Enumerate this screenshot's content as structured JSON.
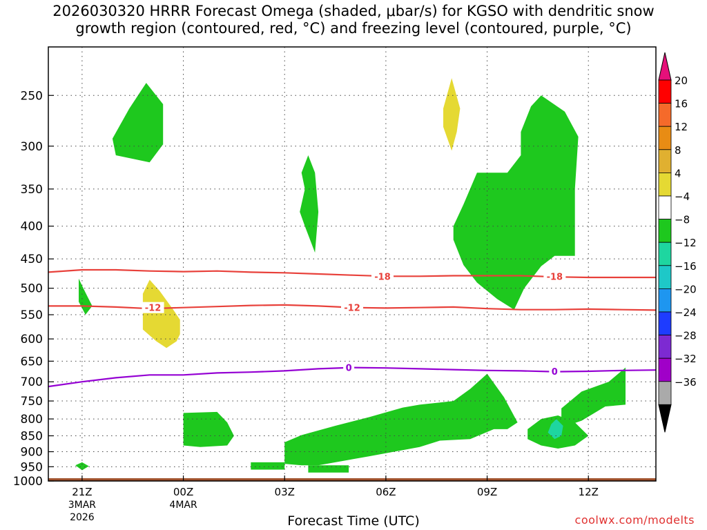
{
  "title_line1": "2026030320 HRRR Forecast Omega (shaded, μbar/s) for KGSO with dendritic snow",
  "title_line2": "growth region (contoured, red, °C) and freezing level (contoured, purple, °C)",
  "credit": "coolwx.com/modelts",
  "chart_data": {
    "type": "heatmap",
    "title": "2026030320 HRRR Forecast Omega (shaded, μbar/s) for KGSO with dendritic snow growth region (contoured, red, °C) and freezing level (contoured, purple, °C)",
    "xlabel": "Forecast Time (UTC)",
    "ylabel": "",
    "x_range_hours_from_21Z": [
      -1,
      17
    ],
    "y_axis": {
      "scale": "log",
      "inverted": true,
      "range_hPa": [
        1000,
        210
      ]
    },
    "y_ticks": [
      250,
      300,
      350,
      400,
      450,
      500,
      550,
      600,
      650,
      700,
      750,
      800,
      850,
      900,
      950,
      1000
    ],
    "x_ticks": [
      {
        "hour": 0,
        "label": "21Z",
        "sub1": "3MAR",
        "sub2": "2026"
      },
      {
        "hour": 3,
        "label": "00Z",
        "sub1": "4MAR",
        "sub2": ""
      },
      {
        "hour": 6,
        "label": "03Z",
        "sub1": "",
        "sub2": ""
      },
      {
        "hour": 9,
        "label": "06Z",
        "sub1": "",
        "sub2": ""
      },
      {
        "hour": 12,
        "label": "09Z",
        "sub1": "",
        "sub2": ""
      },
      {
        "hour": 15,
        "label": "12Z",
        "sub1": "",
        "sub2": ""
      }
    ],
    "grid": true,
    "colorbar": {
      "levels": [
        "20",
        "16",
        "12",
        "8",
        "4",
        "−4",
        "−8",
        "−12",
        "−16",
        "−20",
        "−24",
        "−28",
        "−32",
        "−36"
      ],
      "colors": [
        "#ff0000",
        "#f56a2a",
        "#e88c14",
        "#e0b030",
        "#e5d933",
        "#ffffff",
        "#1ec81e",
        "#1ed6a0",
        "#1ec8c8",
        "#1e96f0",
        "#1e3cff",
        "#7d2ad2",
        "#a000c8",
        "#aaaaaa"
      ],
      "top_arrow_color": "#e6107a",
      "bottom_arrow_color": "#000000"
    },
    "regions": [
      {
        "value": -4,
        "color": "#1ec81e",
        "points": [
          [
            0.9,
            292
          ],
          [
            1.4,
            262
          ],
          [
            1.9,
            239
          ],
          [
            2.4,
            258
          ],
          [
            2.4,
            298
          ],
          [
            2.0,
            318
          ],
          [
            1.0,
            310
          ]
        ]
      },
      {
        "value": -4,
        "color": "#1ec81e",
        "points": [
          [
            6.5,
            330
          ],
          [
            6.7,
            310
          ],
          [
            6.9,
            330
          ],
          [
            7.0,
            380
          ],
          [
            6.9,
            440
          ],
          [
            6.6,
            400
          ],
          [
            6.45,
            380
          ],
          [
            6.6,
            350
          ]
        ]
      },
      {
        "value": -4,
        "color": "#1ec81e",
        "points": [
          [
            13.0,
            285
          ],
          [
            13.3,
            260
          ],
          [
            13.6,
            250
          ],
          [
            14.3,
            265
          ],
          [
            14.7,
            290
          ],
          [
            14.6,
            350
          ],
          [
            14.6,
            445
          ],
          [
            14.0,
            445
          ],
          [
            13.6,
            462
          ],
          [
            13.1,
            500
          ],
          [
            12.8,
            540
          ],
          [
            12.3,
            520
          ],
          [
            11.7,
            490
          ],
          [
            11.3,
            460
          ],
          [
            11.0,
            420
          ],
          [
            11.0,
            400
          ],
          [
            11.3,
            370
          ],
          [
            11.7,
            330
          ],
          [
            12.6,
            330
          ],
          [
            13.0,
            310
          ]
        ]
      },
      {
        "value": -4,
        "color": "#1ec81e",
        "points": [
          [
            -0.1,
            483
          ],
          [
            0.1,
            508
          ],
          [
            0.3,
            533
          ],
          [
            0.1,
            550
          ],
          [
            -0.1,
            525
          ]
        ]
      },
      {
        "value": -4,
        "color": "#1ec81e",
        "points": [
          [
            3.0,
            783
          ],
          [
            4.0,
            780
          ],
          [
            4.3,
            810
          ],
          [
            4.5,
            850
          ],
          [
            4.3,
            880
          ],
          [
            3.5,
            885
          ],
          [
            3.0,
            880
          ]
        ]
      },
      {
        "value": -4,
        "color": "#1ec81e",
        "points": [
          [
            6.0,
            940
          ],
          [
            6.0,
            870
          ],
          [
            6.5,
            848
          ],
          [
            7.5,
            820
          ],
          [
            8.5,
            795
          ],
          [
            9.5,
            768
          ],
          [
            10.0,
            760
          ],
          [
            11.0,
            750
          ],
          [
            11.5,
            718
          ],
          [
            12.0,
            680
          ],
          [
            12.5,
            740
          ],
          [
            12.9,
            810
          ],
          [
            12.6,
            830
          ],
          [
            12.2,
            830
          ],
          [
            11.5,
            860
          ],
          [
            10.6,
            865
          ],
          [
            10.0,
            885
          ],
          [
            8.5,
            915
          ],
          [
            7.0,
            945
          ],
          [
            6.5,
            945
          ]
        ]
      },
      {
        "value": -4,
        "color": "#1ec81e",
        "points": [
          [
            5.0,
            935
          ],
          [
            6.0,
            935
          ],
          [
            6.0,
            960
          ],
          [
            5.0,
            960
          ]
        ]
      },
      {
        "value": -4,
        "color": "#1ec81e",
        "points": [
          [
            6.7,
            945
          ],
          [
            7.9,
            945
          ],
          [
            7.9,
            970
          ],
          [
            6.7,
            970
          ]
        ]
      },
      {
        "value": -4,
        "color": "#1ec81e",
        "points": [
          [
            14.2,
            810
          ],
          [
            14.2,
            770
          ],
          [
            14.8,
            725
          ],
          [
            15.6,
            700
          ],
          [
            16.1,
            665
          ],
          [
            16.1,
            760
          ],
          [
            15.5,
            765
          ],
          [
            14.8,
            805
          ],
          [
            14.5,
            815
          ]
        ]
      },
      {
        "value": -4,
        "color": "#1ec81e",
        "points": [
          [
            13.2,
            830
          ],
          [
            13.6,
            800
          ],
          [
            14.1,
            790
          ],
          [
            14.6,
            810
          ],
          [
            15.0,
            850
          ],
          [
            14.6,
            880
          ],
          [
            14.1,
            890
          ],
          [
            13.6,
            880
          ],
          [
            13.2,
            860
          ]
        ]
      },
      {
        "value": -8,
        "color": "#1ed6a0",
        "points": [
          [
            14.05,
            800
          ],
          [
            14.25,
            820
          ],
          [
            14.2,
            850
          ],
          [
            14.0,
            860
          ],
          [
            13.8,
            840
          ],
          [
            13.9,
            815
          ]
        ]
      },
      {
        "value": -4,
        "color": "#1ec81e",
        "points": [
          [
            -0.2,
            945
          ],
          [
            0.0,
            935
          ],
          [
            0.2,
            948
          ],
          [
            0.0,
            962
          ]
        ]
      },
      {
        "value": 4,
        "color": "#e5d933",
        "points": [
          [
            10.7,
            262
          ],
          [
            10.95,
            235
          ],
          [
            11.2,
            262
          ],
          [
            11.1,
            285
          ],
          [
            10.95,
            305
          ],
          [
            10.7,
            280
          ]
        ]
      },
      {
        "value": 4,
        "color": "#e5d933",
        "points": [
          [
            1.8,
            510
          ],
          [
            2.0,
            485
          ],
          [
            2.3,
            505
          ],
          [
            2.7,
            540
          ],
          [
            2.9,
            560
          ],
          [
            2.9,
            590
          ],
          [
            2.8,
            605
          ],
          [
            2.5,
            620
          ],
          [
            2.2,
            605
          ],
          [
            1.8,
            580
          ],
          [
            1.8,
            545
          ]
        ]
      }
    ],
    "contours": [
      {
        "level": "-18",
        "color": "#e8403a",
        "points": [
          [
            -1,
            472
          ],
          [
            0.0,
            468
          ],
          [
            1.0,
            468
          ],
          [
            2.0,
            470
          ],
          [
            3.0,
            471
          ],
          [
            4.0,
            470
          ],
          [
            5.0,
            472
          ],
          [
            6.0,
            473
          ],
          [
            7.0,
            475
          ],
          [
            8.0,
            477
          ],
          [
            9.0,
            479
          ],
          [
            10.0,
            479
          ],
          [
            11.0,
            478
          ],
          [
            12.0,
            478
          ],
          [
            13.0,
            478
          ],
          [
            14.0,
            480
          ],
          [
            15.0,
            481
          ],
          [
            16.0,
            481
          ],
          [
            17.0,
            481
          ]
        ],
        "labels": [
          {
            "x": 8.9,
            "p": 479
          },
          {
            "x": 14.0,
            "p": 479
          }
        ]
      },
      {
        "level": "-12",
        "color": "#e8403a",
        "points": [
          [
            -1,
            533
          ],
          [
            0.0,
            533
          ],
          [
            1.0,
            535
          ],
          [
            2.0,
            538
          ],
          [
            3.0,
            536
          ],
          [
            4.0,
            534
          ],
          [
            5.0,
            532
          ],
          [
            6.0,
            531
          ],
          [
            7.0,
            533
          ],
          [
            8.0,
            536
          ],
          [
            9.0,
            537
          ],
          [
            10.0,
            536
          ],
          [
            11.0,
            535
          ],
          [
            12.0,
            538
          ],
          [
            13.0,
            540
          ],
          [
            14.0,
            540
          ],
          [
            15.0,
            539
          ],
          [
            16.0,
            540
          ],
          [
            17.0,
            541
          ]
        ],
        "labels": [
          {
            "x": 2.1,
            "p": 536
          },
          {
            "x": 8.0,
            "p": 536
          }
        ]
      },
      {
        "level": "0",
        "color": "#9400d3",
        "points": [
          [
            -1,
            712
          ],
          [
            0.0,
            700
          ],
          [
            1.0,
            690
          ],
          [
            2.0,
            683
          ],
          [
            3.0,
            683
          ],
          [
            4.0,
            678
          ],
          [
            5.0,
            676
          ],
          [
            6.0,
            673
          ],
          [
            7.0,
            668
          ],
          [
            8.0,
            665
          ],
          [
            9.0,
            666
          ],
          [
            10.0,
            668
          ],
          [
            11.0,
            670
          ],
          [
            12.0,
            672
          ],
          [
            13.0,
            673
          ],
          [
            14.0,
            675
          ],
          [
            15.0,
            674
          ],
          [
            16.0,
            672
          ],
          [
            17.0,
            671
          ]
        ],
        "labels": [
          {
            "x": 7.9,
            "p": 665
          },
          {
            "x": 14.0,
            "p": 674
          }
        ]
      }
    ],
    "terrain": {
      "color": "#a0522d",
      "surface_hPa": 990
    }
  }
}
